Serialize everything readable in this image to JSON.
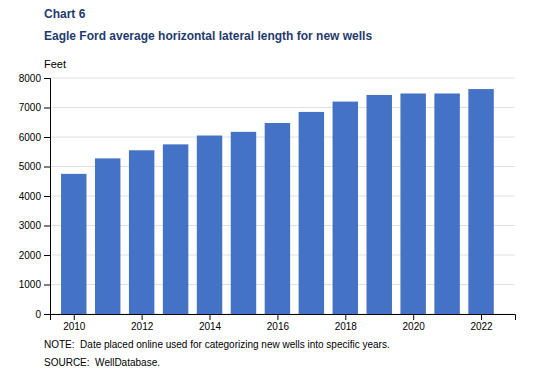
{
  "chart_data": {
    "type": "bar",
    "title": "Eagle Ford average horizontal lateral length for new wells",
    "ylabel": "Feet",
    "annotations": [
      "Chart 6",
      "NOTE:  Date placed online used for categorizing new wells into specific years.",
      "SOURCE:  WellDatabase."
    ],
    "x": [
      2010,
      2011,
      2012,
      2013,
      2014,
      2015,
      2016,
      2017,
      2018,
      2019,
      2020,
      2021,
      2022
    ],
    "values": [
      4750,
      5275,
      5550,
      5750,
      6050,
      6175,
      6475,
      6850,
      7200,
      7425,
      7475,
      7475,
      7625
    ],
    "color": "#4472C4",
    "xlim": [
      2009.3,
      2023.0
    ],
    "xticks": [
      2010,
      2012,
      2014,
      2016,
      2018,
      2020,
      2022
    ],
    "ylim": [
      0,
      8000
    ],
    "yticks": [
      0,
      1000,
      2000,
      3000,
      4000,
      5000,
      6000,
      7000,
      8000
    ],
    "grid": true
  }
}
